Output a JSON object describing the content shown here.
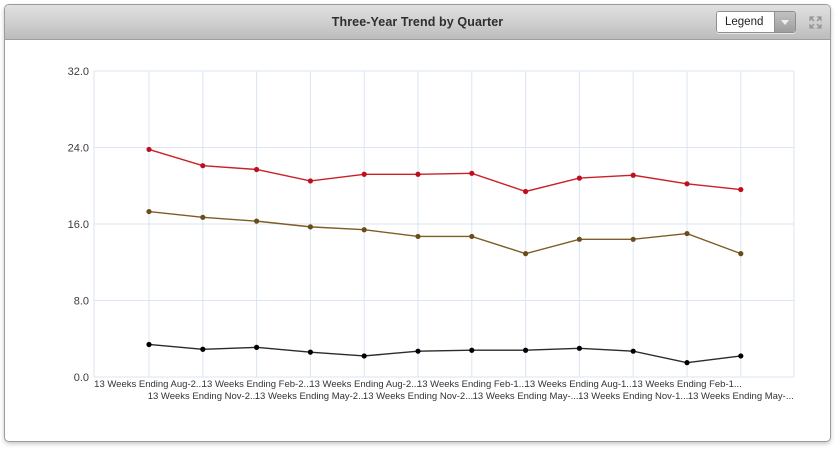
{
  "header": {
    "title": "Three-Year Trend by Quarter",
    "legend_dropdown": {
      "value": "Legend"
    }
  },
  "colors": {
    "header_gradient_top": "#e0e0e0",
    "header_gradient_bottom": "#bcbcbc",
    "gridline": "#dbe5f3",
    "axis_text": "#3c3c3c",
    "panel_border": "#9c9c9c"
  },
  "chart_data": {
    "type": "line",
    "title": "Three-Year Trend by Quarter",
    "x_labels": [
      "13 Weeks Ending Aug-2...",
      "13 Weeks Ending Nov-2...",
      "13 Weeks Ending Feb-2...",
      "13 Weeks Ending May-2...",
      "13 Weeks Ending Aug-2...",
      "13 Weeks Ending Nov-2...",
      "13 Weeks Ending Feb-1...",
      "13 Weeks Ending May-...",
      "13 Weeks Ending Aug-1...",
      "13 Weeks Ending Nov-1...",
      "13 Weeks Ending Feb-1...",
      "13 Weeks Ending May-..."
    ],
    "x_label_layout": "staggered-two-rows",
    "ylim": [
      0,
      32
    ],
    "yticks": [
      0,
      8,
      16,
      24,
      32
    ],
    "ytick_labels": [
      "0.0",
      "8.0",
      "16.0",
      "24.0",
      "32.0"
    ],
    "grid": true,
    "legend_position": "collapsed-dropdown",
    "series": [
      {
        "name": "red-series",
        "color": "#cb2027",
        "marker_color": "#bc101c",
        "values": [
          23.8,
          22.1,
          21.7,
          20.5,
          21.2,
          21.2,
          21.3,
          19.4,
          20.8,
          21.1,
          20.2,
          19.6
        ]
      },
      {
        "name": "brown-series",
        "color": "#7e5d26",
        "marker_color": "#6a4d1b",
        "values": [
          17.3,
          16.7,
          16.3,
          15.7,
          15.4,
          14.7,
          14.7,
          12.9,
          14.4,
          14.4,
          15.0,
          12.9
        ]
      },
      {
        "name": "black-series",
        "color": "#2b2b2b",
        "marker_color": "#000000",
        "values": [
          3.4,
          2.9,
          3.1,
          2.6,
          2.2,
          2.7,
          2.8,
          2.8,
          3.0,
          2.7,
          1.5,
          2.2
        ]
      }
    ]
  }
}
